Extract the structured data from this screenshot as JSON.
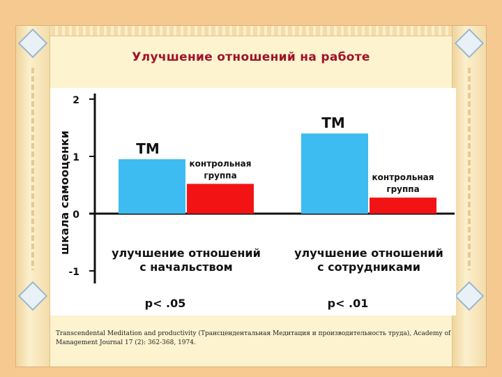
{
  "slide": {
    "title": "Улучшение отношений на работе",
    "citation": "Transcendental Meditation and productivity (Трансцендентальная Медитация и производительность труда), Academy of Management Journal 17 (2): 362-368, 1974."
  },
  "colors": {
    "tm": "#3cbcf0",
    "control": "#f21414",
    "title": "#a0122a"
  },
  "chart_data": {
    "type": "bar",
    "ylabel": "шкала самооценки",
    "ylim": [
      -1,
      2
    ],
    "yticks": [
      "2",
      "1",
      "0",
      "-1"
    ],
    "grid": false,
    "groups": [
      {
        "label_line1": "улучшение отношений",
        "label_line2": "с начальством",
        "pvalue": "p< .05",
        "bars": [
          {
            "label": "ТМ",
            "value": 0.95
          },
          {
            "label_line1": "контрольная",
            "label_line2": "группа",
            "value": 0.52
          }
        ]
      },
      {
        "label_line1": "улучшение отношений",
        "label_line2": "с сотрудниками",
        "pvalue": "p< .01",
        "bars": [
          {
            "label": "ТМ",
            "value": 1.4
          },
          {
            "label_line1": "контрольная",
            "label_line2": "группа",
            "value": 0.28
          }
        ]
      }
    ]
  }
}
